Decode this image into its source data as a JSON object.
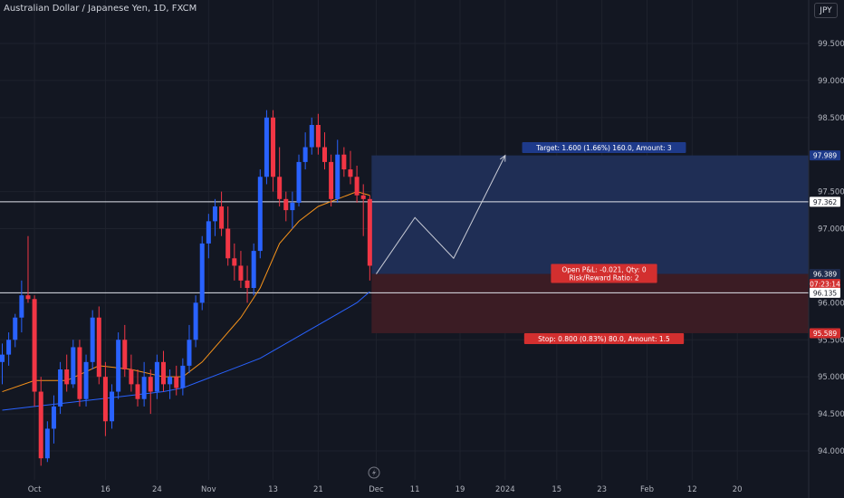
{
  "symbol": {
    "title": "Australian Dollar / Japanese Yen, 1D, FXCM"
  },
  "toolbar": {
    "currency_label": "JPY",
    "currency_icon": "lightning-icon"
  },
  "colors": {
    "background": "#131722",
    "grid": "#1e222d",
    "up": "#2962ff",
    "down": "#f23645",
    "ma_fast": "#f7931a",
    "ma_slow": "#2962ff",
    "profit_zone": "#1f2e55",
    "loss_zone": "#3b1c24",
    "label_blue": "#1e3a8a",
    "label_red": "#d32f2f"
  },
  "chart_data": {
    "type": "candlestick",
    "title": "Australian Dollar / Japanese Yen, 1D, FXCM",
    "ylim": [
      93.8,
      99.8
    ],
    "price_ticks": [
      "99.500",
      "99.000",
      "98.500",
      "97.500",
      "97.000",
      "96.000",
      "95.500",
      "95.000",
      "94.500",
      "94.000"
    ],
    "price_tick_values": [
      99.5,
      99.0,
      98.5,
      97.5,
      97.0,
      96.0,
      95.5,
      95.0,
      94.5,
      94.0
    ],
    "date_ticks": [
      "Oct",
      "16",
      "24",
      "Nov",
      "13",
      "21",
      "Dec",
      "11",
      "19",
      "2024",
      "15",
      "23",
      "Feb",
      "12",
      "20"
    ],
    "date_tick_index": [
      5,
      16,
      24,
      32,
      42,
      49,
      58,
      64,
      71,
      78,
      86,
      93,
      100,
      107,
      114
    ],
    "candles": [
      {
        "o": 95.2,
        "h": 95.45,
        "l": 94.9,
        "c": 95.3
      },
      {
        "o": 95.3,
        "h": 95.6,
        "l": 95.15,
        "c": 95.5
      },
      {
        "o": 95.5,
        "h": 95.85,
        "l": 95.4,
        "c": 95.8
      },
      {
        "o": 95.8,
        "h": 96.3,
        "l": 95.6,
        "c": 96.1
      },
      {
        "o": 96.1,
        "h": 96.9,
        "l": 96.0,
        "c": 96.05
      },
      {
        "o": 96.05,
        "h": 96.1,
        "l": 94.6,
        "c": 94.8
      },
      {
        "o": 94.8,
        "h": 95.0,
        "l": 93.8,
        "c": 93.9
      },
      {
        "o": 93.9,
        "h": 94.4,
        "l": 93.85,
        "c": 94.3
      },
      {
        "o": 94.3,
        "h": 94.75,
        "l": 94.1,
        "c": 94.6
      },
      {
        "o": 94.6,
        "h": 95.2,
        "l": 94.5,
        "c": 95.1
      },
      {
        "o": 95.1,
        "h": 95.3,
        "l": 94.8,
        "c": 94.9
      },
      {
        "o": 94.9,
        "h": 95.5,
        "l": 94.85,
        "c": 95.4
      },
      {
        "o": 95.4,
        "h": 95.5,
        "l": 94.6,
        "c": 94.7
      },
      {
        "o": 94.7,
        "h": 95.3,
        "l": 94.6,
        "c": 95.2
      },
      {
        "o": 95.2,
        "h": 95.9,
        "l": 95.1,
        "c": 95.8
      },
      {
        "o": 95.8,
        "h": 95.95,
        "l": 94.9,
        "c": 95.0
      },
      {
        "o": 95.0,
        "h": 95.2,
        "l": 94.2,
        "c": 94.4
      },
      {
        "o": 94.4,
        "h": 94.9,
        "l": 94.3,
        "c": 94.8
      },
      {
        "o": 94.8,
        "h": 95.6,
        "l": 94.7,
        "c": 95.5
      },
      {
        "o": 95.5,
        "h": 95.7,
        "l": 95.0,
        "c": 95.1
      },
      {
        "o": 95.1,
        "h": 95.3,
        "l": 94.8,
        "c": 94.9
      },
      {
        "o": 94.9,
        "h": 95.1,
        "l": 94.6,
        "c": 94.7
      },
      {
        "o": 94.7,
        "h": 95.2,
        "l": 94.6,
        "c": 95.0
      },
      {
        "o": 95.0,
        "h": 95.1,
        "l": 94.5,
        "c": 94.8
      },
      {
        "o": 94.8,
        "h": 95.3,
        "l": 94.7,
        "c": 95.2
      },
      {
        "o": 95.2,
        "h": 95.35,
        "l": 94.8,
        "c": 94.9
      },
      {
        "o": 94.9,
        "h": 95.1,
        "l": 94.7,
        "c": 95.0
      },
      {
        "o": 95.0,
        "h": 95.15,
        "l": 94.75,
        "c": 94.85
      },
      {
        "o": 94.85,
        "h": 95.25,
        "l": 94.75,
        "c": 95.15
      },
      {
        "o": 95.15,
        "h": 95.7,
        "l": 95.05,
        "c": 95.5
      },
      {
        "o": 95.5,
        "h": 96.1,
        "l": 95.4,
        "c": 96.0
      },
      {
        "o": 96.0,
        "h": 96.9,
        "l": 95.9,
        "c": 96.8
      },
      {
        "o": 96.8,
        "h": 97.2,
        "l": 96.6,
        "c": 97.1
      },
      {
        "o": 97.1,
        "h": 97.4,
        "l": 96.9,
        "c": 97.3
      },
      {
        "o": 97.3,
        "h": 97.5,
        "l": 96.9,
        "c": 97.0
      },
      {
        "o": 97.0,
        "h": 97.3,
        "l": 96.5,
        "c": 96.6
      },
      {
        "o": 96.6,
        "h": 96.8,
        "l": 96.3,
        "c": 96.5
      },
      {
        "o": 96.5,
        "h": 96.7,
        "l": 96.2,
        "c": 96.3
      },
      {
        "o": 96.3,
        "h": 96.5,
        "l": 96.0,
        "c": 96.2
      },
      {
        "o": 96.2,
        "h": 96.8,
        "l": 96.1,
        "c": 96.7
      },
      {
        "o": 96.7,
        "h": 97.8,
        "l": 96.6,
        "c": 97.7
      },
      {
        "o": 97.7,
        "h": 98.6,
        "l": 97.6,
        "c": 98.5
      },
      {
        "o": 98.5,
        "h": 98.6,
        "l": 97.5,
        "c": 97.7
      },
      {
        "o": 97.7,
        "h": 98.1,
        "l": 97.3,
        "c": 97.4
      },
      {
        "o": 97.4,
        "h": 97.5,
        "l": 97.1,
        "c": 97.25
      },
      {
        "o": 97.25,
        "h": 97.5,
        "l": 97.0,
        "c": 97.35
      },
      {
        "o": 97.35,
        "h": 98.0,
        "l": 97.3,
        "c": 97.9
      },
      {
        "o": 97.9,
        "h": 98.3,
        "l": 97.8,
        "c": 98.1
      },
      {
        "o": 98.1,
        "h": 98.5,
        "l": 98.0,
        "c": 98.4
      },
      {
        "o": 98.4,
        "h": 98.55,
        "l": 98.0,
        "c": 98.1
      },
      {
        "o": 98.1,
        "h": 98.3,
        "l": 97.8,
        "c": 97.9
      },
      {
        "o": 97.9,
        "h": 98.0,
        "l": 97.3,
        "c": 97.4
      },
      {
        "o": 97.4,
        "h": 98.2,
        "l": 97.35,
        "c": 98.0
      },
      {
        "o": 98.0,
        "h": 98.1,
        "l": 97.7,
        "c": 97.8
      },
      {
        "o": 97.8,
        "h": 98.05,
        "l": 97.6,
        "c": 97.7
      },
      {
        "o": 97.7,
        "h": 97.85,
        "l": 97.35,
        "c": 97.45
      },
      {
        "o": 97.45,
        "h": 97.6,
        "l": 96.9,
        "c": 97.4
      },
      {
        "o": 97.4,
        "h": 97.45,
        "l": 96.3,
        "c": 96.5
      }
    ],
    "ma_fast": [
      [
        0,
        94.8
      ],
      [
        5,
        94.95
      ],
      [
        10,
        94.95
      ],
      [
        15,
        95.15
      ],
      [
        20,
        95.1
      ],
      [
        25,
        95.0
      ],
      [
        28,
        95.0
      ],
      [
        31,
        95.2
      ],
      [
        34,
        95.5
      ],
      [
        37,
        95.8
      ],
      [
        40,
        96.2
      ],
      [
        43,
        96.8
      ],
      [
        46,
        97.1
      ],
      [
        49,
        97.3
      ],
      [
        52,
        97.4
      ],
      [
        55,
        97.5
      ],
      [
        57,
        97.45
      ]
    ],
    "ma_slow": [
      [
        0,
        94.55
      ],
      [
        5,
        94.6
      ],
      [
        10,
        94.65
      ],
      [
        15,
        94.7
      ],
      [
        20,
        94.75
      ],
      [
        25,
        94.8
      ],
      [
        28,
        94.85
      ],
      [
        31,
        94.95
      ],
      [
        34,
        95.05
      ],
      [
        37,
        95.15
      ],
      [
        40,
        95.25
      ],
      [
        43,
        95.4
      ],
      [
        46,
        95.55
      ],
      [
        49,
        95.7
      ],
      [
        52,
        95.85
      ],
      [
        55,
        96.0
      ],
      [
        57,
        96.15
      ]
    ],
    "horizontal_lines": [
      97.362,
      96.135
    ],
    "position": {
      "entry": 96.389,
      "target": 97.989,
      "stop": 95.589,
      "target_label": "Target: 1.600 (1.66%) 160.0, Amount: 3",
      "stop_label": "Stop: 0.800 (0.83%) 80.0, Amount: 1.5",
      "info_line1": "Open P&L: -0.021, Qty: 0",
      "info_line2": "Risk/Reward Ratio: 2"
    },
    "projection_path": [
      [
        58,
        96.389
      ],
      [
        64,
        97.15
      ],
      [
        70,
        96.6
      ],
      [
        78,
        97.989
      ]
    ],
    "price_labels": [
      {
        "text": "97.989",
        "value": 97.989,
        "style": "blue"
      },
      {
        "text": "97.362",
        "value": 97.362,
        "style": "white"
      },
      {
        "text": "96.389",
        "value": 96.389,
        "style": "darkblue"
      },
      {
        "text": "07:23:14",
        "value": 96.255,
        "style": "red"
      },
      {
        "text": "96.135",
        "value": 96.135,
        "style": "white"
      },
      {
        "text": "95.589",
        "value": 95.589,
        "style": "red"
      }
    ]
  }
}
